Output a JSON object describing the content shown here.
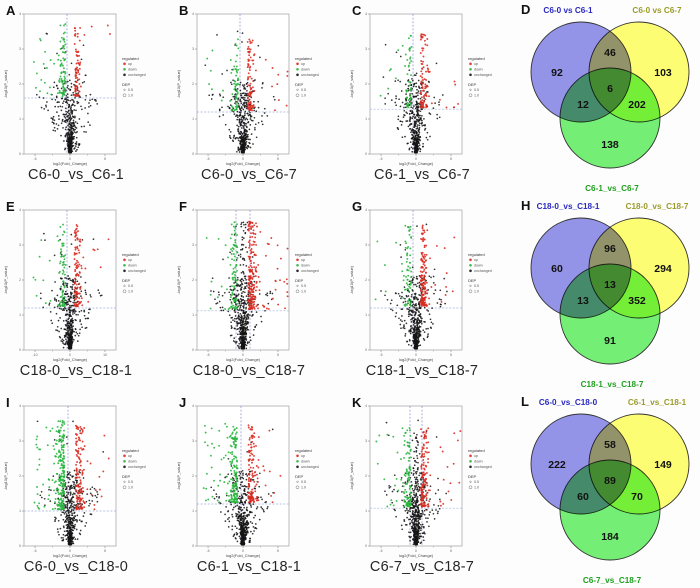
{
  "volcano_legend": {
    "title": "regulated",
    "up": "up",
    "down": "down",
    "unchanged": "unchanged",
    "dep_title": "DEP",
    "dep_sizes": [
      "0.5",
      "1.0"
    ]
  },
  "colors": {
    "up": "#d92a20",
    "down": "#27b53c",
    "unchanged": "#141414",
    "threshold_h": "#9fb0da",
    "threshold_v": "#8c8cd0",
    "venn_blue": "#8888e8",
    "venn_yellow": "#ffff66",
    "venn_green": "#66ee66"
  },
  "panels": [
    {
      "letter": "A",
      "kind": "volcano",
      "caption": "C6-0_vs_C6-1"
    },
    {
      "letter": "B",
      "kind": "volcano",
      "caption": "C6-0_vs_C6-7"
    },
    {
      "letter": "C",
      "kind": "volcano",
      "caption": "C6-1_vs_C6-7"
    },
    {
      "letter": "D",
      "kind": "venn"
    },
    {
      "letter": "E",
      "kind": "volcano",
      "caption": "C18-0_vs_C18-1"
    },
    {
      "letter": "F",
      "kind": "volcano",
      "caption": "C18-0_vs_C18-7"
    },
    {
      "letter": "G",
      "kind": "volcano",
      "caption": "C18-1_vs_C18-7"
    },
    {
      "letter": "H",
      "kind": "venn"
    },
    {
      "letter": "I",
      "kind": "volcano",
      "caption": "C6-0_vs_C18-0"
    },
    {
      "letter": "J",
      "kind": "volcano",
      "caption": "C6-1_vs_C18-1"
    },
    {
      "letter": "K",
      "kind": "volcano",
      "caption": "C6-7_vs_C18-7"
    },
    {
      "letter": "L",
      "kind": "venn"
    }
  ],
  "chart_data": [
    {
      "panel": "A",
      "type": "scatter",
      "subtype": "volcano",
      "comparison": "C6-0_vs_C6-1",
      "xlabel": "log2(Fold_Change)",
      "ylabel": "-log10(P_value)",
      "x_ticks": [
        "-5",
        "0",
        "5"
      ],
      "y_ticks": [
        "0",
        "1",
        "2",
        "3",
        "4"
      ],
      "points": {
        "up_n": 80,
        "down_n": 95,
        "unchanged_n": 480,
        "up_color": "#d92a20",
        "down_color": "#27b53c",
        "unchanged_color": "#141414"
      },
      "threshold": {
        "hline_frac": 0.4,
        "vlines": [
          -3
        ]
      },
      "cluster_top": 0.93,
      "spread": 1.0,
      "center_column_top": 0,
      "seed": 11
    },
    {
      "panel": "B",
      "type": "scatter",
      "subtype": "volcano",
      "comparison": "C6-0_vs_C6-7",
      "xlabel": "log2(Fold_Change)",
      "ylabel": "-log10(P_value)",
      "x_ticks": [
        "-5",
        "0",
        "5"
      ],
      "y_ticks": [
        "0",
        "1",
        "2",
        "3",
        "4"
      ],
      "points": {
        "up_n": 95,
        "down_n": 60,
        "unchanged_n": 480,
        "up_color": "#d92a20",
        "down_color": "#27b53c",
        "unchanged_color": "#141414"
      },
      "threshold": {
        "hline_frac": 0.3,
        "vlines": [
          -3
        ]
      },
      "cluster_top": 0.82,
      "spread": 1.0,
      "center_column_top": 0,
      "seed": 22
    },
    {
      "panel": "C",
      "type": "scatter",
      "subtype": "volcano",
      "comparison": "C6-1_vs_C6-7",
      "xlabel": "log2(Fold_Change)",
      "ylabel": "-log10(P_value)",
      "x_ticks": [
        "-5",
        "0",
        "5"
      ],
      "y_ticks": [
        "0",
        "1",
        "2",
        "3",
        "4"
      ],
      "points": {
        "up_n": 100,
        "down_n": 55,
        "unchanged_n": 480,
        "up_color": "#d92a20",
        "down_color": "#27b53c",
        "unchanged_color": "#141414"
      },
      "threshold": {
        "hline_frac": 0.32,
        "vlines": [
          -3
        ]
      },
      "cluster_top": 0.86,
      "spread": 1.0,
      "center_column_top": 0,
      "seed": 33
    },
    {
      "panel": "D",
      "type": "venn",
      "sets": [
        {
          "label": "C6-0 vs C6-1",
          "color": "#8888e8",
          "label_color": "#2929c0"
        },
        {
          "label": "C6-0 vs C6-7",
          "color": "#ffff66",
          "label_color": "#9b9b2a"
        },
        {
          "label": "C6-1_vs_C6-7",
          "color": "#66ee66",
          "label_color": "#1fa01f"
        }
      ],
      "values": {
        "A": 92,
        "AB": 46,
        "B": 103,
        "AC": 12,
        "ABC": 6,
        "BC": 202,
        "C": 138
      }
    },
    {
      "panel": "E",
      "type": "scatter",
      "subtype": "volcano",
      "comparison": "C18-0_vs_C18-1",
      "xlabel": "log2(Fold_Change)",
      "ylabel": "-log10(P_value)",
      "x_ticks": [
        "-10",
        "0",
        "10"
      ],
      "y_ticks": [
        "0",
        "1",
        "2",
        "3",
        "4"
      ],
      "points": {
        "up_n": 115,
        "down_n": 75,
        "unchanged_n": 500,
        "up_color": "#d92a20",
        "down_color": "#27b53c",
        "unchanged_color": "#141414"
      },
      "threshold": {
        "hline_frac": 0.3,
        "vlines": [
          -3
        ]
      },
      "cluster_top": 0.9,
      "spread": 1.0,
      "center_column_top": 0,
      "seed": 44
    },
    {
      "panel": "F",
      "type": "scatter",
      "subtype": "volcano",
      "comparison": "C18-0_vs_C18-7",
      "xlabel": "log2(Fold_Change)",
      "ylabel": "-log10(P_value)",
      "x_ticks": [
        "-5",
        "0",
        "5"
      ],
      "y_ticks": [
        "0",
        "1",
        "2",
        "3",
        "4"
      ],
      "points": {
        "up_n": 210,
        "down_n": 95,
        "unchanged_n": 500,
        "up_color": "#d92a20",
        "down_color": "#27b53c",
        "unchanged_color": "#141414"
      },
      "threshold": {
        "hline_frac": 0.28,
        "vlines": [
          -7,
          7
        ]
      },
      "cluster_top": 0.92,
      "spread": 1.2,
      "center_column_top": 0.92,
      "seed": 55
    },
    {
      "panel": "G",
      "type": "scatter",
      "subtype": "volcano",
      "comparison": "C18-1_vs_C18-7",
      "xlabel": "log2(Fold_Change)",
      "ylabel": "-log10(P_value)",
      "x_ticks": [
        "-5",
        "0",
        "5"
      ],
      "y_ticks": [
        "0",
        "1",
        "2",
        "3",
        "4"
      ],
      "points": {
        "up_n": 160,
        "down_n": 70,
        "unchanged_n": 500,
        "up_color": "#d92a20",
        "down_color": "#27b53c",
        "unchanged_color": "#141414"
      },
      "threshold": {
        "hline_frac": 0.3,
        "vlines": [
          -3
        ]
      },
      "cluster_top": 0.9,
      "spread": 1.05,
      "center_column_top": 0,
      "seed": 66
    },
    {
      "panel": "H",
      "type": "venn",
      "sets": [
        {
          "label": "C18-0_vs_C18-1",
          "color": "#8888e8",
          "label_color": "#2929c0"
        },
        {
          "label": "C18-0_vs_C18-7",
          "color": "#ffff66",
          "label_color": "#9b9b2a"
        },
        {
          "label": "C18-1_vs_C18-7",
          "color": "#66ee66",
          "label_color": "#1fa01f"
        }
      ],
      "values": {
        "A": 60,
        "AB": 96,
        "B": 294,
        "AC": 13,
        "ABC": 13,
        "BC": 352,
        "C": 91
      }
    },
    {
      "panel": "I",
      "type": "scatter",
      "subtype": "volcano",
      "comparison": "C6-0_vs_C18-0",
      "xlabel": "log2(Fold_Change)",
      "ylabel": "-log10(P_value)",
      "x_ticks": [
        "-5",
        "0",
        "5"
      ],
      "y_ticks": [
        "0",
        "1",
        "2",
        "3",
        "4"
      ],
      "points": {
        "up_n": 150,
        "down_n": 240,
        "unchanged_n": 520,
        "up_color": "#d92a20",
        "down_color": "#27b53c",
        "unchanged_color": "#141414"
      },
      "threshold": {
        "hline_frac": 0.25,
        "vlines": [
          -2
        ]
      },
      "cluster_top": 0.9,
      "spread": 1.25,
      "center_column_top": 0,
      "seed": 77
    },
    {
      "panel": "J",
      "type": "scatter",
      "subtype": "volcano",
      "comparison": "C6-1_vs_C18-1",
      "xlabel": "log2(Fold_Change)",
      "ylabel": "-log10(P_value)",
      "x_ticks": [
        "-5",
        "0",
        "5"
      ],
      "y_ticks": [
        "0",
        "1",
        "2",
        "3",
        "4"
      ],
      "points": {
        "up_n": 140,
        "down_n": 180,
        "unchanged_n": 520,
        "up_color": "#d92a20",
        "down_color": "#27b53c",
        "unchanged_color": "#141414"
      },
      "threshold": {
        "hline_frac": 0.3,
        "vlines": [
          -2
        ]
      },
      "cluster_top": 0.88,
      "spread": 1.2,
      "center_column_top": 0,
      "seed": 88
    },
    {
      "panel": "K",
      "type": "scatter",
      "subtype": "volcano",
      "comparison": "C6-7_vs_C18-7",
      "xlabel": "log2(Fold_Change)",
      "ylabel": "-log10(P_value)",
      "x_ticks": [
        "-5",
        "0",
        "5"
      ],
      "y_ticks": [
        "0",
        "1",
        "2",
        "3",
        "4"
      ],
      "points": {
        "up_n": 150,
        "down_n": 110,
        "unchanged_n": 520,
        "up_color": "#d92a20",
        "down_color": "#27b53c",
        "unchanged_color": "#141414"
      },
      "threshold": {
        "hline_frac": 0.27,
        "vlines": [
          -6,
          6
        ]
      },
      "cluster_top": 0.85,
      "spread": 1.1,
      "center_column_top": 0.8,
      "seed": 99
    },
    {
      "panel": "L",
      "type": "venn",
      "sets": [
        {
          "label": "C6-0_vs_C18-0",
          "color": "#8888e8",
          "label_color": "#2929c0"
        },
        {
          "label": "C6-1_vs_C18-1",
          "color": "#ffff66",
          "label_color": "#9b9b2a"
        },
        {
          "label": "C6-7_vs_C18-7",
          "color": "#66ee66",
          "label_color": "#1fa01f"
        }
      ],
      "values": {
        "A": 222,
        "AB": 58,
        "B": 149,
        "AC": 60,
        "ABC": 89,
        "BC": 70,
        "C": 184
      }
    }
  ]
}
